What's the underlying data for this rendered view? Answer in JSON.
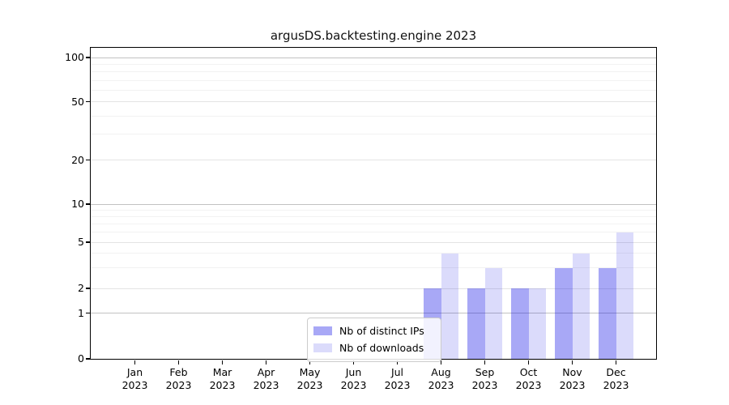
{
  "chart_data": {
    "type": "bar",
    "title": "argusDS.backtesting.engine 2023",
    "months": [
      "Jan",
      "Feb",
      "Mar",
      "Apr",
      "May",
      "Jun",
      "Jul",
      "Aug",
      "Sep",
      "Oct",
      "Nov",
      "Dec"
    ],
    "year": "2023",
    "categories": [
      "Jan 2023",
      "Feb 2023",
      "Mar 2023",
      "Apr 2023",
      "May 2023",
      "Jun 2023",
      "Jul 2023",
      "Aug 2023",
      "Sep 2023",
      "Oct 2023",
      "Nov 2023",
      "Dec 2023"
    ],
    "series": [
      {
        "name": "Nb of distinct IPs",
        "color": "rgba(0,0,230,0.34)",
        "values": [
          0,
          0,
          0,
          0,
          0,
          0,
          0,
          2,
          2,
          2,
          3,
          3
        ]
      },
      {
        "name": "Nb of downloads",
        "color": "rgba(0,0,230,0.14)",
        "values": [
          0,
          0,
          0,
          0,
          0,
          0,
          0,
          4,
          3,
          2,
          4,
          6
        ]
      }
    ],
    "yscale": "symlog",
    "ylim": [
      0,
      116
    ],
    "y_ticks": [
      0,
      1,
      2,
      5,
      10,
      20,
      50,
      100
    ],
    "y_decade_gridlines": [
      1,
      10,
      100
    ],
    "y_labeled_gridlines": [
      2,
      5,
      20,
      50
    ],
    "y_minor_gridlines": [
      3,
      4,
      6,
      7,
      8,
      9,
      30,
      40,
      60,
      70,
      80,
      90
    ],
    "grid": true,
    "legend": {
      "position": "lower center"
    }
  },
  "colors": {
    "background": "#ffffff",
    "spine": "#000000",
    "grid_decade": "#c2c2c2",
    "grid_labeled": "#e4e4e4",
    "grid_minor": "#f2f2f2",
    "legend_border": "#cccccc",
    "tick_text": "#000000"
  }
}
